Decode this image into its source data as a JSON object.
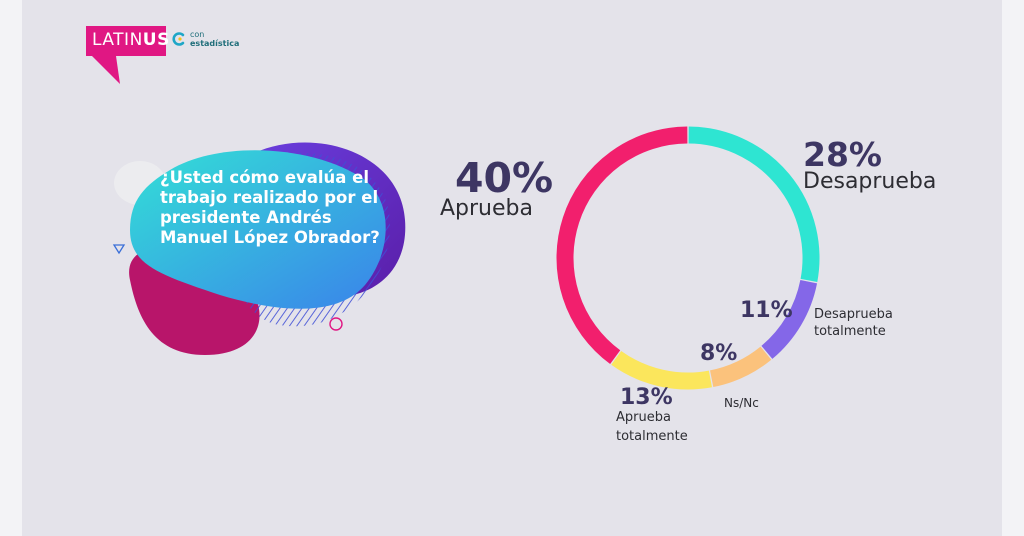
{
  "logo": {
    "brand_light": "LATIN",
    "brand_bold": "US",
    "partner_line1": "con",
    "partner_line2": "estadística"
  },
  "question": "¿Usted cómo evalúa el trabajo realizado por el presidente Andrés Manuel López Obrador?",
  "colors": {
    "aprueba": "#f21f6d",
    "desaprueba": "#2ee5d2",
    "desaprueba_totalmente": "#8467e8",
    "nsnc": "#fbc27c",
    "aprueba_totalmente": "#fbe65c",
    "text_dark": "#3d3663",
    "brand_pink": "#e01783"
  },
  "chart_data": {
    "type": "pie",
    "subtype": "donut",
    "title": "",
    "categories": [
      "Desaprueba",
      "Desaprueba totalmente",
      "Ns/Nc",
      "Aprueba totalmente",
      "Aprueba"
    ],
    "values": [
      28,
      11,
      8,
      13,
      40
    ],
    "labels": [
      "28%",
      "11%",
      "8%",
      "13%",
      "40%"
    ]
  },
  "labels": {
    "aprueba_pct": "40%",
    "aprueba": "Aprueba",
    "desaprueba_pct": "28%",
    "desaprueba": "Desaprueba",
    "desaprueba_totalmente_pct": "11%",
    "desaprueba_totalmente_1": "Desaprueba",
    "desaprueba_totalmente_2": "totalmente",
    "nsnc_pct": "8%",
    "nsnc": "Ns/Nc",
    "aprueba_totalmente_pct": "13%",
    "aprueba_totalmente_1": "Aprueba",
    "aprueba_totalmente_2": "totalmente"
  }
}
